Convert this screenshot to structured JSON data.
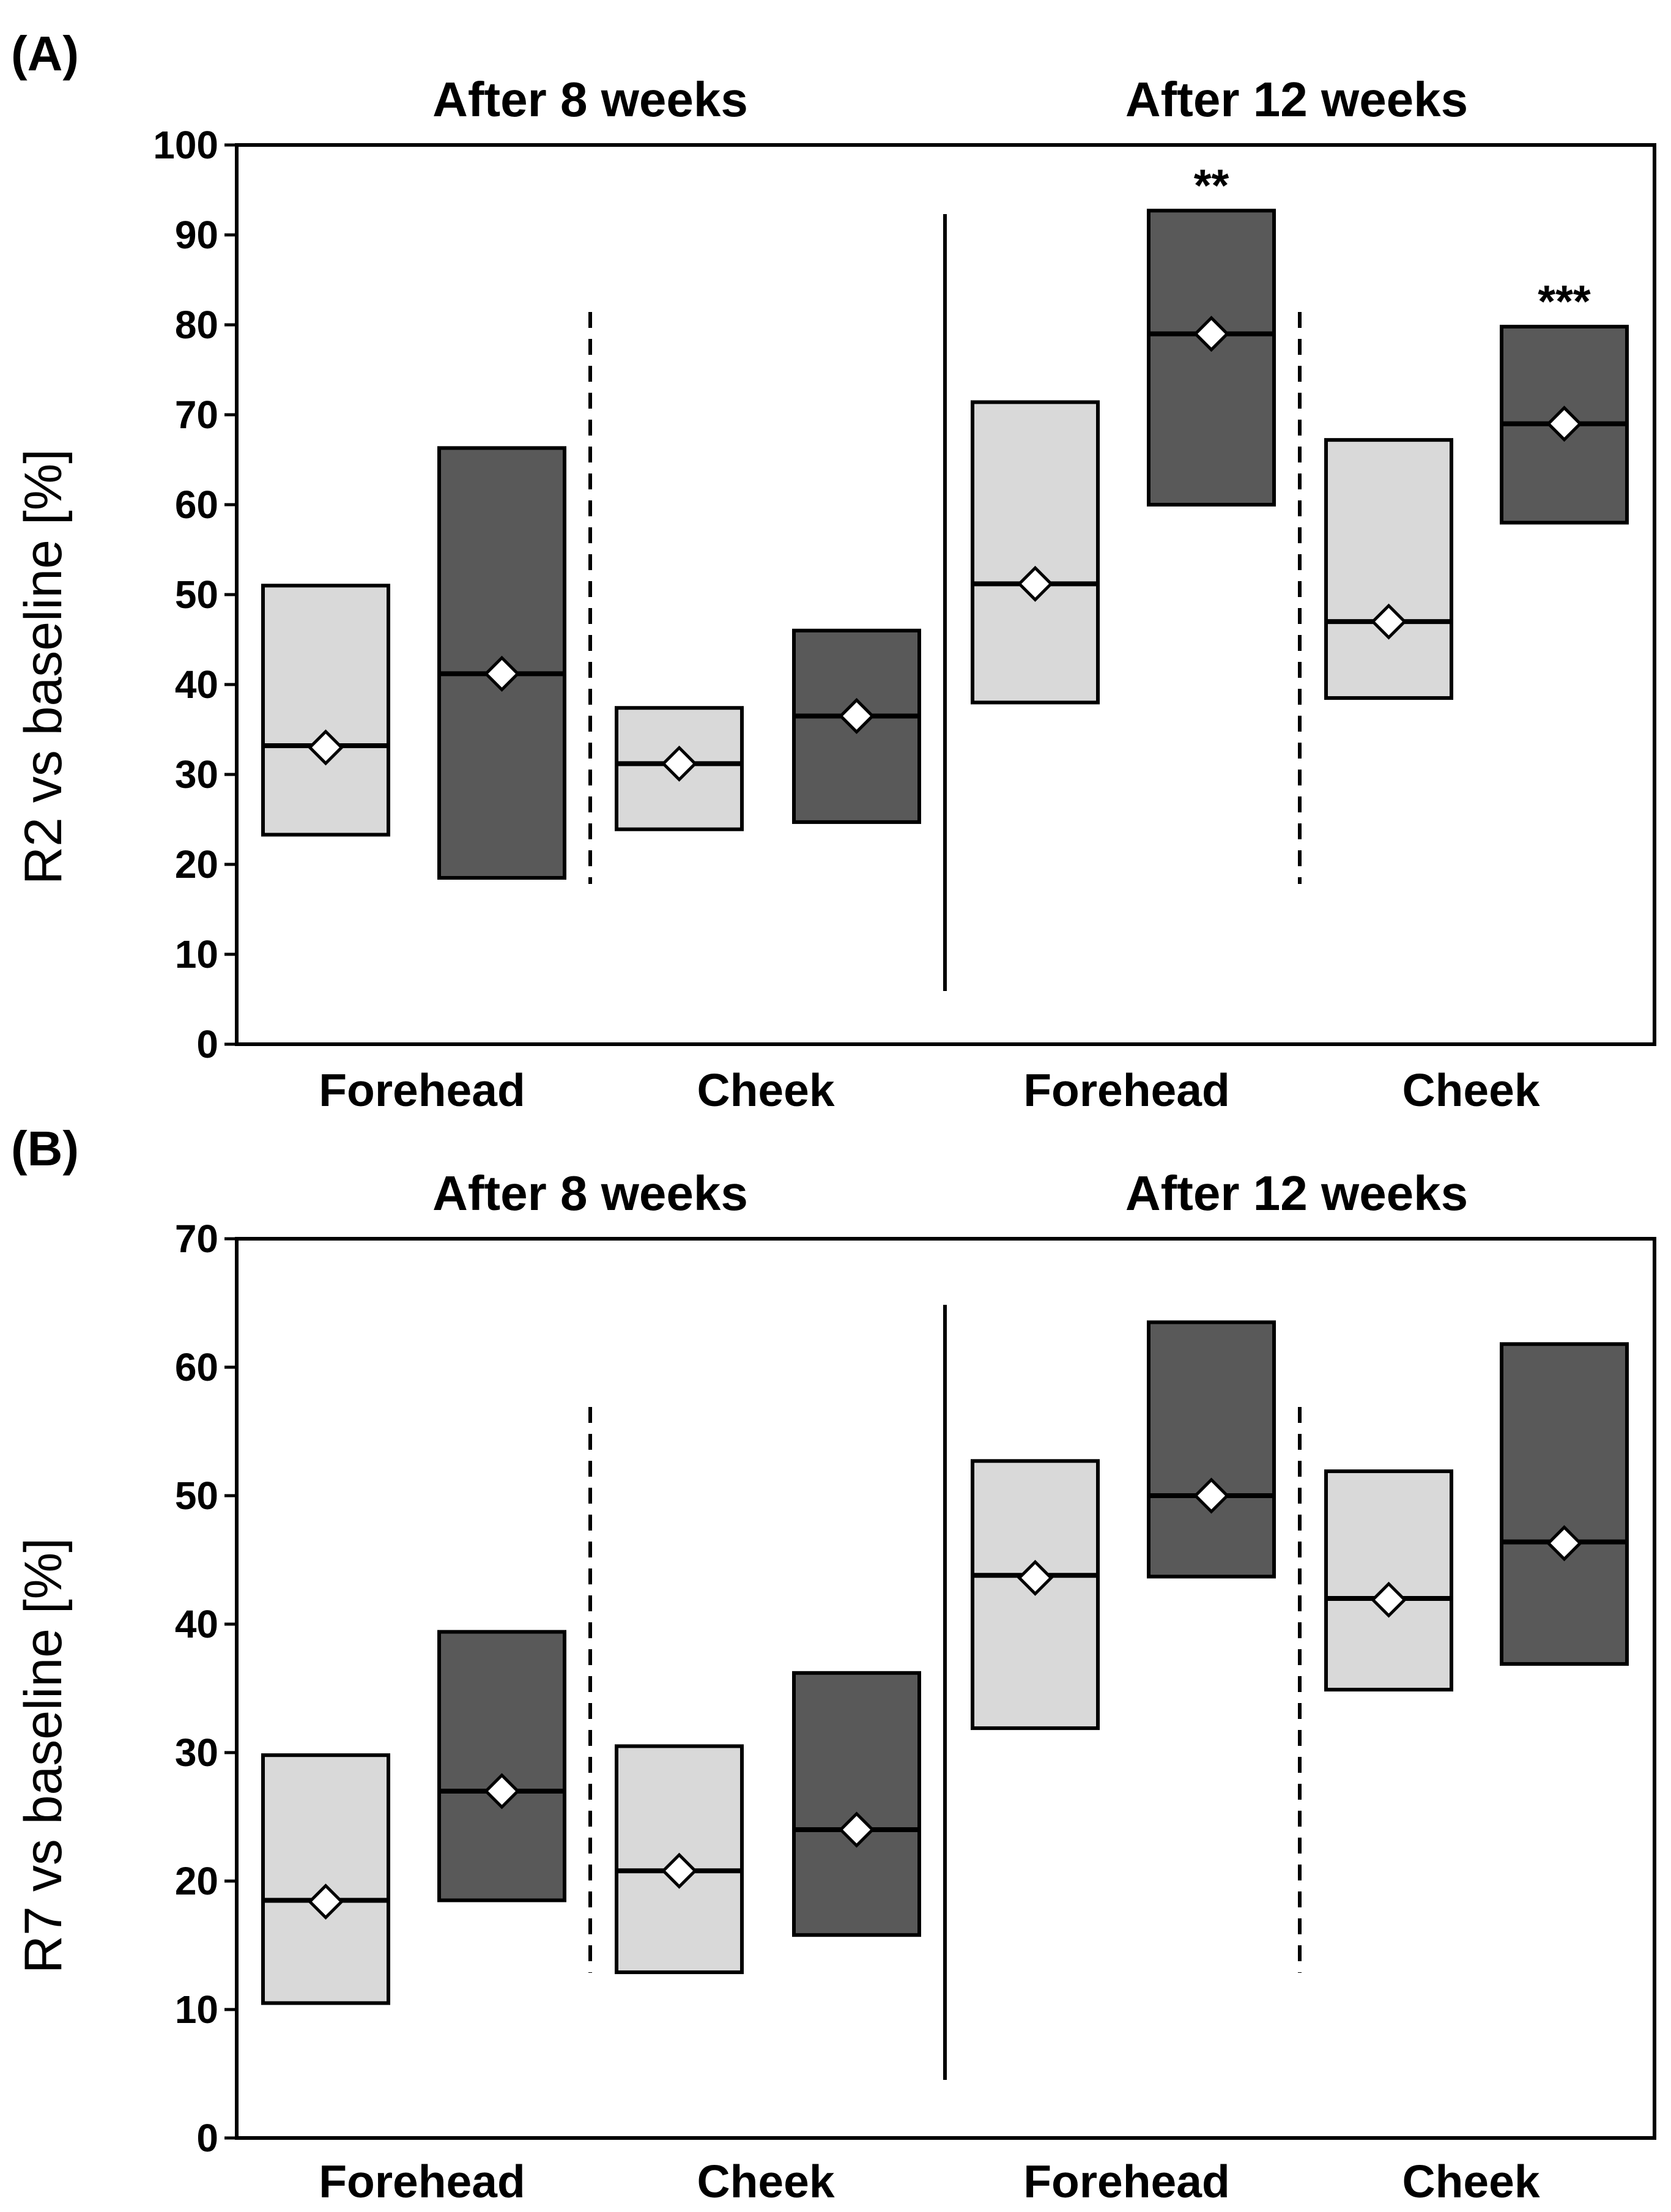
{
  "chart_data": [
    {
      "type": "box",
      "panel_label": "(A)",
      "ylabel": "R2 vs baseline [%]",
      "ylim": [
        0,
        100
      ],
      "yticks": [
        0,
        10,
        20,
        30,
        40,
        50,
        60,
        70,
        80,
        90,
        100
      ],
      "time_groups": [
        "After 8 weeks",
        "After 12 weeks"
      ],
      "site_labels": [
        "Forehead",
        "Cheek",
        "Forehead",
        "Cheek"
      ],
      "series_colors": {
        "light": "#d9d9d9",
        "dark": "#595959"
      },
      "boxes": [
        {
          "group": "After 8 weeks",
          "site": "Forehead",
          "shade": "light",
          "low": 23.3,
          "high": 51.0,
          "median": 33.2,
          "mean": 33.0,
          "annotation": ""
        },
        {
          "group": "After 8 weeks",
          "site": "Forehead",
          "shade": "dark",
          "low": 18.5,
          "high": 66.3,
          "median": 41.2,
          "mean": 41.2,
          "annotation": ""
        },
        {
          "group": "After 8 weeks",
          "site": "Cheek",
          "shade": "light",
          "low": 23.9,
          "high": 37.4,
          "median": 31.2,
          "mean": 31.2,
          "annotation": ""
        },
        {
          "group": "After 8 weeks",
          "site": "Cheek",
          "shade": "dark",
          "low": 24.7,
          "high": 46.0,
          "median": 36.5,
          "mean": 36.5,
          "annotation": ""
        },
        {
          "group": "After 12 weeks",
          "site": "Forehead",
          "shade": "light",
          "low": 38.0,
          "high": 71.4,
          "median": 51.2,
          "mean": 51.2,
          "annotation": ""
        },
        {
          "group": "After 12 weeks",
          "site": "Forehead",
          "shade": "dark",
          "low": 60.0,
          "high": 92.7,
          "median": 79.0,
          "mean": 79.0,
          "annotation": "**"
        },
        {
          "group": "After 12 weeks",
          "site": "Cheek",
          "shade": "light",
          "low": 38.5,
          "high": 67.2,
          "median": 47.0,
          "mean": 47.0,
          "annotation": ""
        },
        {
          "group": "After 12 weeks",
          "site": "Cheek",
          "shade": "dark",
          "low": 58.0,
          "high": 79.8,
          "median": 69.0,
          "mean": 69.0,
          "annotation": "***"
        }
      ]
    },
    {
      "type": "box",
      "panel_label": "(B)",
      "ylabel": "R7 vs baseline [%]",
      "ylim": [
        0,
        70
      ],
      "yticks": [
        0,
        10,
        20,
        30,
        40,
        50,
        60,
        70
      ],
      "time_groups": [
        "After 8 weeks",
        "After 12 weeks"
      ],
      "site_labels": [
        "Forehead",
        "Cheek",
        "Forehead",
        "Cheek"
      ],
      "series_colors": {
        "light": "#d9d9d9",
        "dark": "#595959"
      },
      "boxes": [
        {
          "group": "After 8 weeks",
          "site": "Forehead",
          "shade": "light",
          "low": 10.5,
          "high": 29.8,
          "median": 18.5,
          "mean": 18.4,
          "annotation": ""
        },
        {
          "group": "After 8 weeks",
          "site": "Forehead",
          "shade": "dark",
          "low": 18.5,
          "high": 39.4,
          "median": 27.0,
          "mean": 27.0,
          "annotation": ""
        },
        {
          "group": "After 8 weeks",
          "site": "Cheek",
          "shade": "light",
          "low": 12.9,
          "high": 30.5,
          "median": 20.8,
          "mean": 20.8,
          "annotation": ""
        },
        {
          "group": "After 8 weeks",
          "site": "Cheek",
          "shade": "dark",
          "low": 15.8,
          "high": 36.2,
          "median": 24.0,
          "mean": 24.0,
          "annotation": ""
        },
        {
          "group": "After 12 weeks",
          "site": "Forehead",
          "shade": "light",
          "low": 31.9,
          "high": 52.7,
          "median": 43.8,
          "mean": 43.6,
          "annotation": ""
        },
        {
          "group": "After 12 weeks",
          "site": "Forehead",
          "shade": "dark",
          "low": 43.7,
          "high": 63.5,
          "median": 50.0,
          "mean": 50.0,
          "annotation": ""
        },
        {
          "group": "After 12 weeks",
          "site": "Cheek",
          "shade": "light",
          "low": 34.9,
          "high": 51.9,
          "median": 42.0,
          "mean": 41.9,
          "annotation": ""
        },
        {
          "group": "After 12 weeks",
          "site": "Cheek",
          "shade": "dark",
          "low": 36.9,
          "high": 61.8,
          "median": 46.4,
          "mean": 46.3,
          "annotation": ""
        }
      ]
    }
  ]
}
